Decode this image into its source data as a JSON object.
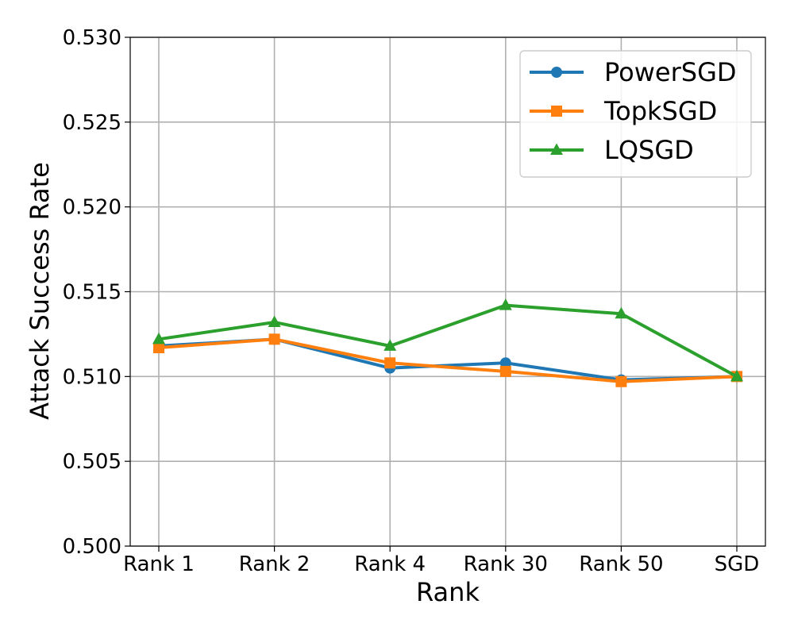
{
  "chart_data": {
    "type": "line",
    "title": "",
    "xlabel": "Rank",
    "ylabel": "Attack Success Rate",
    "categories": [
      "Rank 1",
      "Rank 2",
      "Rank 4",
      "Rank 30",
      "Rank 50",
      "SGD"
    ],
    "ylim": [
      0.5,
      0.53
    ],
    "yticks": [
      "0.500",
      "0.505",
      "0.510",
      "0.515",
      "0.520",
      "0.525",
      "0.530"
    ],
    "grid": true,
    "legend_position": "top-right",
    "series": [
      {
        "name": "PowerSGD",
        "color": "#1f77b4",
        "marker": "circle",
        "values": [
          0.5118,
          0.5122,
          0.5105,
          0.5108,
          0.5098,
          0.51
        ]
      },
      {
        "name": "TopkSGD",
        "color": "#ff7f0e",
        "marker": "square",
        "values": [
          0.5117,
          0.5122,
          0.5108,
          0.5103,
          0.5097,
          0.51
        ]
      },
      {
        "name": "LQSGD",
        "color": "#2ca02c",
        "marker": "triangle",
        "values": [
          0.5122,
          0.5132,
          0.5118,
          0.5142,
          0.5137,
          0.51
        ]
      }
    ]
  }
}
